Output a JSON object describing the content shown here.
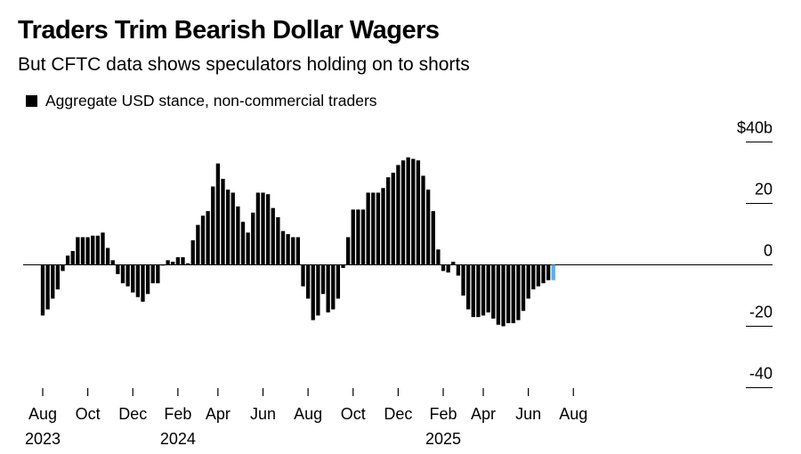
{
  "header": {
    "title": "Traders Trim Bearish Dollar Wagers",
    "subtitle": "But CFTC data shows speculators holding on to shorts"
  },
  "legend": {
    "label": "Aggregate USD stance, non-commercial traders"
  },
  "colors": {
    "bar": "#000000",
    "highlight": "#5aaee8",
    "grid": "#000000"
  },
  "chart_data": {
    "type": "bar",
    "title": "Traders Trim Bearish Dollar Wagers",
    "subtitle": "But CFTC data shows speculators holding on to shorts",
    "series": [
      {
        "name": "Aggregate USD stance, non-commercial traders",
        "values": [
          -16.5,
          -14.5,
          -11,
          -8,
          -2,
          3,
          4.5,
          9,
          9,
          9,
          9.5,
          9.5,
          10.5,
          5.5,
          1.5,
          -3,
          -6,
          -7,
          -9,
          -10.5,
          -12,
          -9.5,
          -6,
          -6,
          0,
          1.5,
          1,
          2.5,
          2.5,
          0.5,
          8,
          13,
          16,
          17.5,
          25.5,
          33,
          28,
          24.5,
          23.5,
          19,
          14,
          10.5,
          17,
          23.5,
          23.5,
          23,
          18.5,
          15.5,
          11,
          10,
          9,
          9,
          -7,
          -11,
          -18,
          -16.5,
          -9.5,
          -15.5,
          -14.5,
          -11,
          -1,
          9,
          18,
          18,
          18,
          23.5,
          23.5,
          23.5,
          25,
          28.5,
          30,
          32.5,
          34,
          35,
          34.5,
          34,
          29,
          24.5,
          17.5,
          5,
          -2,
          -2.5,
          1,
          -3.5,
          -10,
          -14.5,
          -17,
          -17,
          -16.5,
          -15.5,
          -17.5,
          -19.5,
          -20,
          -19,
          -19,
          -18,
          -15,
          -11,
          -8,
          -7,
          -6,
          -5,
          -5
        ]
      }
    ],
    "highlight_last": true,
    "y_unit": "$",
    "y_ticks": [
      40,
      20,
      0,
      -20,
      -40
    ],
    "y_tick_labels": [
      "$40b",
      "20",
      "0",
      "-20",
      "-40"
    ],
    "ylim": [
      -45,
      45
    ],
    "x_labels": [
      {
        "month": "Aug",
        "year": "2023",
        "index": 0
      },
      {
        "month": "Oct",
        "year": "",
        "index": 9
      },
      {
        "month": "Dec",
        "year": "",
        "index": 18
      },
      {
        "month": "Feb",
        "year": "2024",
        "index": 27
      },
      {
        "month": "Apr",
        "year": "",
        "index": 35
      },
      {
        "month": "Jun",
        "year": "",
        "index": 44
      },
      {
        "month": "Aug",
        "year": "",
        "index": 53
      },
      {
        "month": "Oct",
        "year": "",
        "index": 62
      },
      {
        "month": "Dec",
        "year": "",
        "index": 71
      },
      {
        "month": "Feb",
        "year": "2025",
        "index": 80
      },
      {
        "month": "Apr",
        "year": "",
        "index": 88
      },
      {
        "month": "Jun",
        "year": "",
        "index": 97
      },
      {
        "month": "Aug",
        "year": "",
        "index": 106
      }
    ],
    "grid": false,
    "legend_position": "top-left"
  }
}
